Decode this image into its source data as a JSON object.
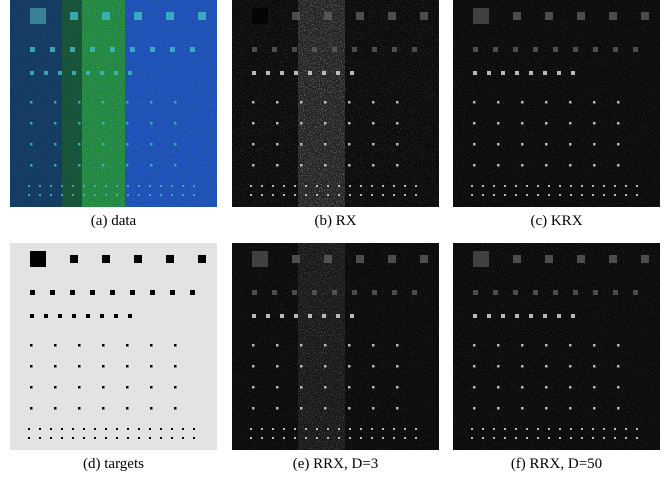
{
  "panels": [
    {
      "caption": "(a) data"
    },
    {
      "caption": "(b) RX"
    },
    {
      "caption": "(c) KRX"
    },
    {
      "caption": "(d) targets"
    },
    {
      "caption": "(e) RRX, D=3"
    },
    {
      "caption": "(f) RRX, D=50"
    }
  ]
}
